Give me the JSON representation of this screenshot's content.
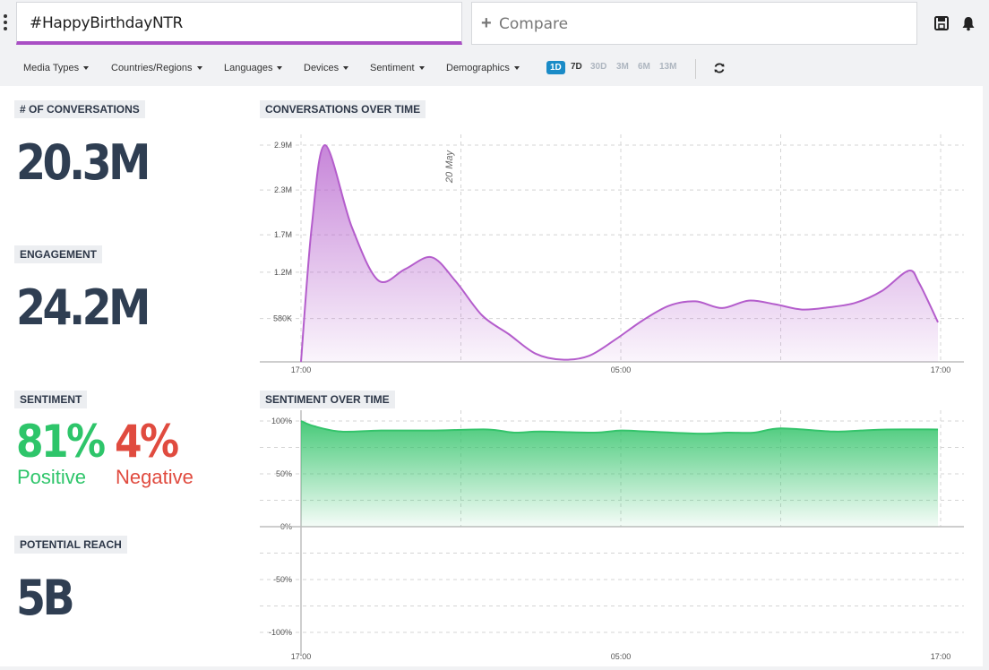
{
  "search": {
    "value": "#HappyBirthdayNTR"
  },
  "compare": {
    "label": "Compare"
  },
  "filters": [
    "Media Types",
    "Countries/Regions",
    "Languages",
    "Devices",
    "Sentiment",
    "Demographics"
  ],
  "ranges": [
    "1D",
    "7D",
    "30D",
    "3M",
    "6M",
    "13M"
  ],
  "active_range": "1D",
  "colors": {
    "accent": "#a94fc4",
    "positive": "#2ec56a",
    "negative": "#e04b3f",
    "range_active": "#1a8bc7"
  },
  "metrics": {
    "conversations": {
      "label": "# OF CONVERSATIONS",
      "value": "20.3M"
    },
    "engagement": {
      "label": "ENGAGEMENT",
      "value": "24.2M"
    },
    "sentiment": {
      "label": "SENTIMENT",
      "positive_value": "81%",
      "positive_label": "Positive",
      "negative_value": "4%",
      "negative_label": "Negative"
    },
    "reach": {
      "label": "POTENTIAL REACH",
      "value": "5B"
    }
  },
  "icons": {
    "menu": "kebab-icon",
    "save": "save-icon",
    "notify": "bell-icon",
    "refresh": "refresh-icon",
    "add": "plus-icon"
  },
  "chart_data": [
    {
      "type": "area",
      "title": "CONVERSATIONS OVER TIME",
      "x_tick_labels": [
        "17:00",
        "05:00",
        "17:00"
      ],
      "y_tick_labels": [
        "580K",
        "1.2M",
        "1.7M",
        "2.3M",
        "2.9M"
      ],
      "y_tick_values": [
        580000,
        1200000,
        1700000,
        2300000,
        2900000
      ],
      "annotation": "20 May",
      "annotation_x": 5,
      "ylim": [
        0,
        2900000
      ],
      "x_range_hours": [
        0,
        24
      ],
      "series": [
        {
          "color": "#b45dcc",
          "x": [
            0,
            0.4,
            0.9,
            1.9,
            2.9,
            3.9,
            4.9,
            5.8,
            6.8,
            7.8,
            8.8,
            9.8,
            10.8,
            11.8,
            12.8,
            13.8,
            14.8,
            15.8,
            16.8,
            17.8,
            18.8,
            19.8,
            20.8,
            21.8,
            22.8,
            23.2,
            23.9
          ],
          "values": [
            0,
            1800000,
            2900000,
            1810000,
            1090000,
            1240000,
            1400000,
            1080000,
            620000,
            370000,
            110000,
            30000,
            80000,
            300000,
            550000,
            750000,
            810000,
            720000,
            820000,
            770000,
            700000,
            730000,
            790000,
            950000,
            1220000,
            1050000,
            530000
          ]
        }
      ]
    },
    {
      "type": "area",
      "title": "SENTIMENT OVER TIME",
      "x_tick_labels": [
        "17:00",
        "05:00",
        "17:00"
      ],
      "y_tick_labels": [
        "100%",
        "50%",
        "0%",
        "-50%",
        "-100%"
      ],
      "y_tick_values": [
        100,
        50,
        0,
        -50,
        -100
      ],
      "ylim": [
        -100,
        100
      ],
      "x_range_hours": [
        0,
        24
      ],
      "series": [
        {
          "color": "#34c46b",
          "x": [
            0,
            0.5,
            1.5,
            3,
            5,
            7,
            8,
            9,
            11,
            12,
            13,
            15,
            16,
            17,
            18,
            20,
            21,
            22,
            23.9
          ],
          "values": [
            100,
            95,
            90,
            91,
            91,
            92,
            89,
            90,
            89,
            91,
            90,
            88,
            89,
            89,
            93,
            90,
            91,
            92,
            92
          ]
        }
      ]
    }
  ]
}
